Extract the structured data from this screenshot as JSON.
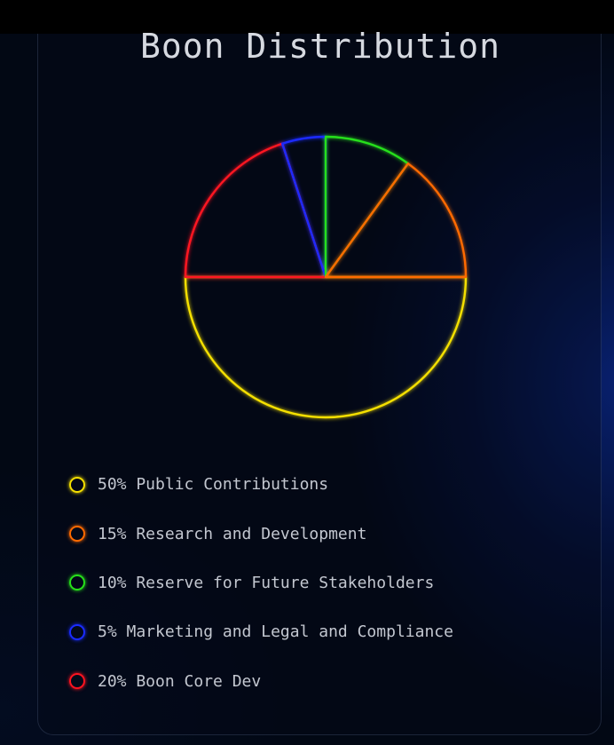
{
  "chart_data": {
    "type": "pie",
    "title": "Boon Distribution",
    "style": "outlined slices with neon glow",
    "legend_position": "bottom-left",
    "slices": [
      {
        "label": "Public Contributions",
        "value": 50,
        "color": "#f5e000"
      },
      {
        "label": "Research and Development",
        "value": 15,
        "color": "#ff6a00"
      },
      {
        "label": "Reserve for Future Stakeholders",
        "value": 10,
        "color": "#27e01a"
      },
      {
        "label": "Marketing and Legal and Compliance",
        "value": 5,
        "color": "#1a2cff"
      },
      {
        "label": "Boon Core Dev",
        "value": 20,
        "color": "#ff1320"
      }
    ],
    "legend_entries": [
      "50% Public Contributions",
      "15% Research and Development",
      "10% Reserve for Future Stakeholders",
      "5% Marketing and Legal and Compliance",
      "20% Boon Core Dev"
    ]
  }
}
